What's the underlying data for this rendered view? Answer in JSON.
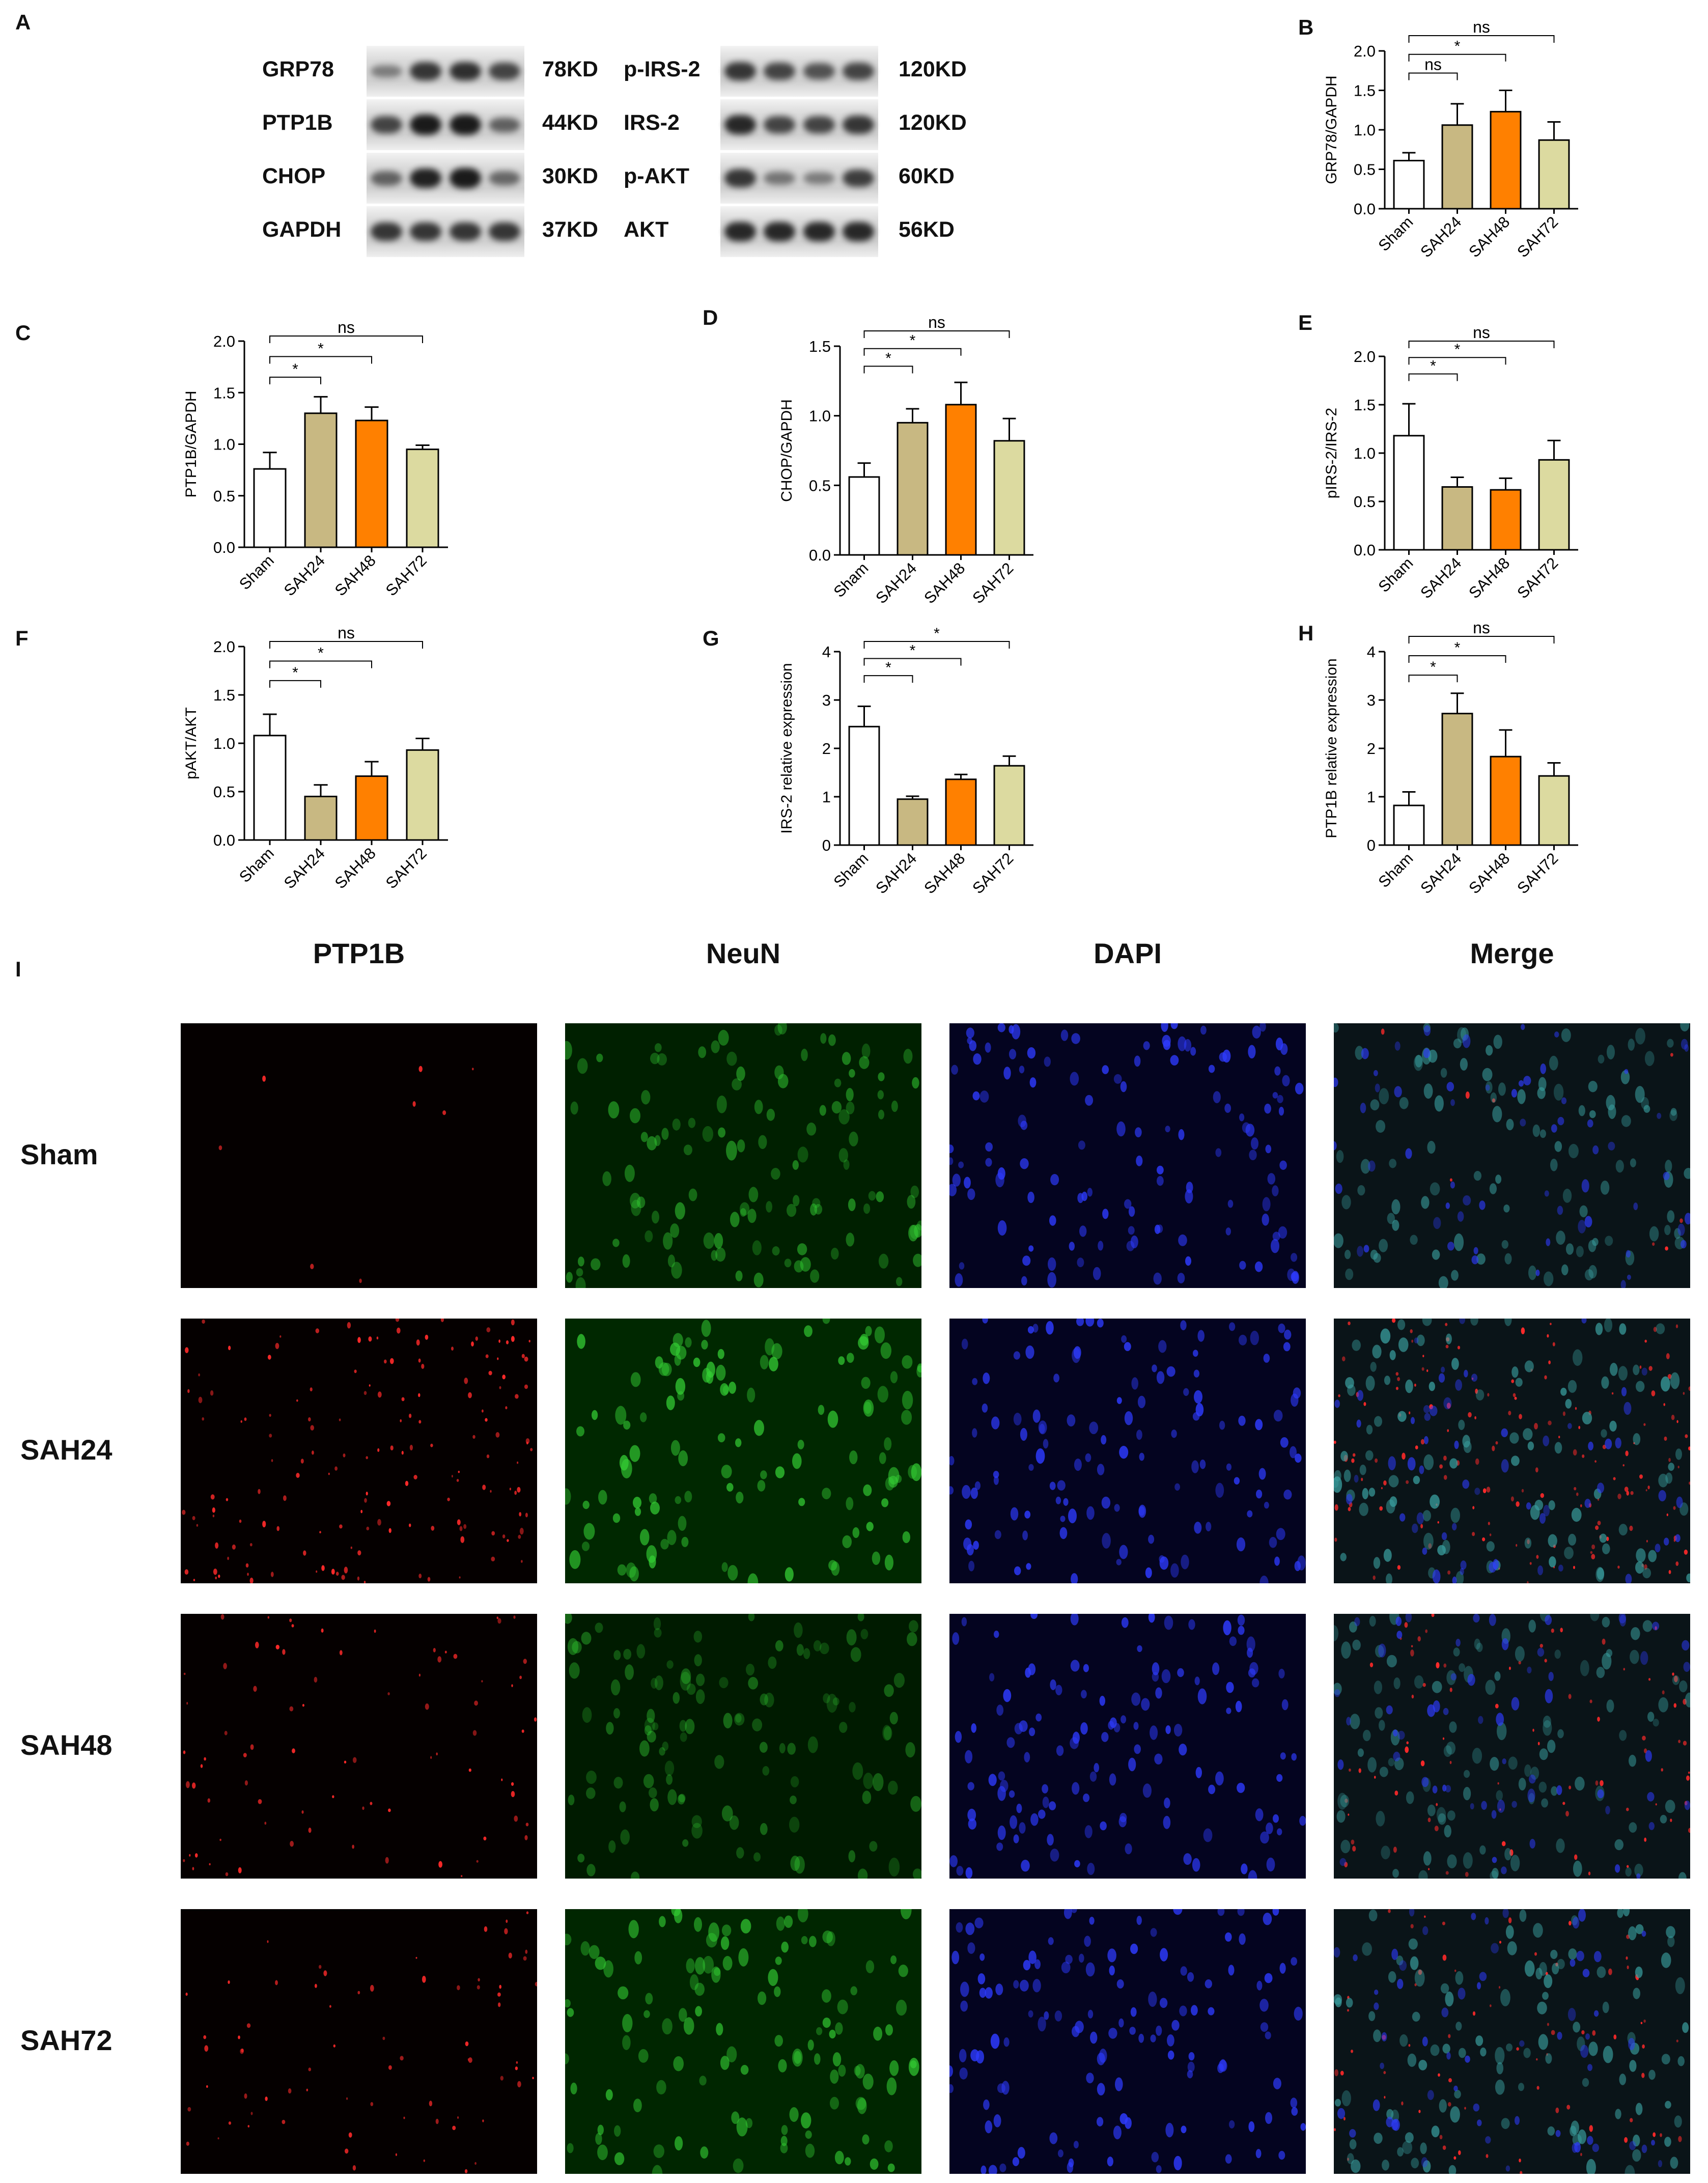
{
  "panelA": {
    "letter": "A",
    "left_labels": [
      "GRP78",
      "PTP1B",
      "CHOP",
      "GAPDH"
    ],
    "left_sizes": [
      "78KD",
      "44KD",
      "30KD",
      "37KD"
    ],
    "right_labels": [
      "p-IRS-2",
      "IRS-2",
      "p-AKT",
      "AKT"
    ],
    "right_sizes": [
      "120KD",
      "120KD",
      "60KD",
      "56KD"
    ],
    "left_band_intensity": [
      [
        0.3,
        0.8,
        0.85,
        0.7
      ],
      [
        0.7,
        1.0,
        1.0,
        0.5
      ],
      [
        0.5,
        0.95,
        1.0,
        0.45
      ],
      [
        0.8,
        0.8,
        0.8,
        0.8
      ]
    ],
    "right_band_intensity": [
      [
        0.8,
        0.7,
        0.6,
        0.7
      ],
      [
        0.9,
        0.7,
        0.7,
        0.8
      ],
      [
        0.8,
        0.35,
        0.3,
        0.75
      ],
      [
        0.9,
        0.9,
        0.9,
        0.9
      ]
    ]
  },
  "colors": {
    "Sham": "#ffffff",
    "SAH24": "#c8b882",
    "SAH48": "#ff8000",
    "SAH72": "#dcdaa0",
    "axis": "#000000"
  },
  "chart_data": [
    {
      "panel": "B",
      "type": "bar",
      "ylabel": "GRP78/GAPDH",
      "categories": [
        "Sham",
        "SAH24",
        "SAH48",
        "SAH72"
      ],
      "values": [
        0.61,
        1.06,
        1.23,
        0.87
      ],
      "errors": [
        0.1,
        0.27,
        0.27,
        0.23
      ],
      "ylim": [
        0,
        2.0
      ],
      "yticks": [
        "0.0",
        "0.5",
        "1.0",
        "1.5",
        "2.0"
      ],
      "tick_values": [
        0,
        0.5,
        1,
        1.5,
        2
      ],
      "significance": [
        {
          "to": 1,
          "label": "ns"
        },
        {
          "to": 2,
          "label": "*"
        },
        {
          "to": 3,
          "label": "ns"
        }
      ]
    },
    {
      "panel": "C",
      "type": "bar",
      "ylabel": "PTP1B/GAPDH",
      "categories": [
        "Sham",
        "SAH24",
        "SAH48",
        "SAH72"
      ],
      "values": [
        0.76,
        1.3,
        1.23,
        0.95
      ],
      "errors": [
        0.16,
        0.16,
        0.13,
        0.04
      ],
      "ylim": [
        0,
        2.0
      ],
      "yticks": [
        "0.0",
        "0.5",
        "1.0",
        "1.5",
        "2.0"
      ],
      "tick_values": [
        0,
        0.5,
        1,
        1.5,
        2
      ],
      "significance": [
        {
          "to": 1,
          "label": "*"
        },
        {
          "to": 2,
          "label": "*"
        },
        {
          "to": 3,
          "label": "ns"
        }
      ]
    },
    {
      "panel": "D",
      "type": "bar",
      "ylabel": "CHOP/GAPDH",
      "categories": [
        "Sham",
        "SAH24",
        "SAH48",
        "SAH72"
      ],
      "values": [
        0.56,
        0.95,
        1.08,
        0.82
      ],
      "errors": [
        0.1,
        0.1,
        0.16,
        0.16
      ],
      "ylim": [
        0,
        1.5
      ],
      "yticks": [
        "0.0",
        "0.5",
        "1.0",
        "1.5"
      ],
      "tick_values": [
        0,
        0.5,
        1,
        1.5
      ],
      "significance": [
        {
          "to": 1,
          "label": "*"
        },
        {
          "to": 2,
          "label": "*"
        },
        {
          "to": 3,
          "label": "ns"
        }
      ]
    },
    {
      "panel": "E",
      "type": "bar",
      "ylabel": "pIRS-2/IRS-2",
      "categories": [
        "Sham",
        "SAH24",
        "SAH48",
        "SAH72"
      ],
      "values": [
        1.18,
        0.65,
        0.62,
        0.93
      ],
      "errors": [
        0.33,
        0.1,
        0.12,
        0.2
      ],
      "ylim": [
        0,
        2.0
      ],
      "yticks": [
        "0.0",
        "0.5",
        "1.0",
        "1.5",
        "2.0"
      ],
      "tick_values": [
        0,
        0.5,
        1,
        1.5,
        2
      ],
      "significance": [
        {
          "to": 1,
          "label": "*"
        },
        {
          "to": 2,
          "label": "*"
        },
        {
          "to": 3,
          "label": "ns"
        }
      ]
    },
    {
      "panel": "F",
      "type": "bar",
      "ylabel": "pAKT/AKT",
      "categories": [
        "Sham",
        "SAH24",
        "SAH48",
        "SAH72"
      ],
      "values": [
        1.08,
        0.45,
        0.66,
        0.93
      ],
      "errors": [
        0.22,
        0.12,
        0.15,
        0.12
      ],
      "ylim": [
        0,
        2.0
      ],
      "yticks": [
        "0.0",
        "0.5",
        "1.0",
        "1.5",
        "2.0"
      ],
      "tick_values": [
        0,
        0.5,
        1,
        1.5,
        2
      ],
      "significance": [
        {
          "to": 1,
          "label": "*"
        },
        {
          "to": 2,
          "label": "*"
        },
        {
          "to": 3,
          "label": "ns"
        }
      ]
    },
    {
      "panel": "G",
      "type": "bar",
      "ylabel": "IRS-2 relative expression",
      "categories": [
        "Sham",
        "SAH24",
        "SAH48",
        "SAH72"
      ],
      "values": [
        2.45,
        0.95,
        1.36,
        1.64
      ],
      "errors": [
        0.42,
        0.06,
        0.1,
        0.2
      ],
      "ylim": [
        0,
        4
      ],
      "yticks": [
        "0",
        "1",
        "2",
        "3",
        "4"
      ],
      "tick_values": [
        0,
        1,
        2,
        3,
        4
      ],
      "significance": [
        {
          "to": 1,
          "label": "*"
        },
        {
          "to": 2,
          "label": "*"
        },
        {
          "to": 3,
          "label": "*"
        }
      ]
    },
    {
      "panel": "H",
      "type": "bar",
      "ylabel": "PTP1B relative expression",
      "categories": [
        "Sham",
        "SAH24",
        "SAH48",
        "SAH72"
      ],
      "values": [
        0.82,
        2.72,
        1.83,
        1.43
      ],
      "errors": [
        0.28,
        0.42,
        0.55,
        0.27
      ],
      "ylim": [
        0,
        4
      ],
      "yticks": [
        "0",
        "1",
        "2",
        "3",
        "4"
      ],
      "tick_values": [
        0,
        1,
        2,
        3,
        4
      ],
      "significance": [
        {
          "to": 1,
          "label": "*"
        },
        {
          "to": 2,
          "label": "*"
        },
        {
          "to": 3,
          "label": "ns"
        }
      ]
    }
  ],
  "panelI": {
    "letter": "I",
    "columns": [
      "PTP1B",
      "NeuN",
      "DAPI",
      "Merge"
    ],
    "rows": [
      "Sham",
      "SAH24",
      "SAH48",
      "SAH72"
    ],
    "channel_colors": [
      "#ff2020",
      "#2ec42e",
      "#2b3cff",
      "merge"
    ],
    "red_density": [
      0.05,
      1.0,
      0.5,
      0.45
    ],
    "green_brightness": [
      0.6,
      1.0,
      0.35,
      0.9
    ]
  }
}
